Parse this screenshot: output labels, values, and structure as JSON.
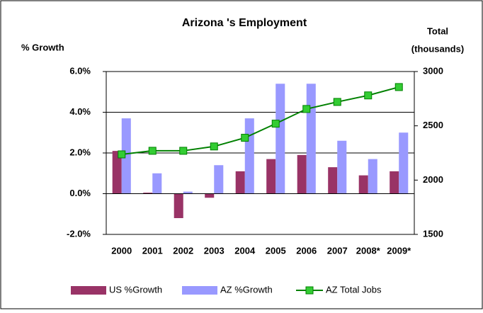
{
  "chart_data": {
    "type": "bar_line",
    "title": "Arizona 's Employment",
    "y_label": "% Growth",
    "y2_label": [
      "Total",
      "(thousands)"
    ],
    "categories": [
      "2000",
      "2001",
      "2002",
      "2003",
      "2004",
      "2005",
      "2006",
      "2007",
      "2008*",
      "2009*"
    ],
    "series": [
      {
        "name": "US %Growth",
        "color": "#993366",
        "type": "bar",
        "values": [
          2.1,
          0.05,
          -1.2,
          -0.2,
          1.1,
          1.7,
          1.9,
          1.3,
          0.9,
          1.1
        ]
      },
      {
        "name": "AZ %Growth",
        "color": "#9999ff",
        "type": "bar",
        "values": [
          3.7,
          1.0,
          0.1,
          1.4,
          3.7,
          5.4,
          5.4,
          2.6,
          1.7,
          3.0
        ]
      },
      {
        "name": "AZ Total Jobs",
        "color": "#008000",
        "marker_color": "#33cc33",
        "type": "line",
        "axis": "y2",
        "values": [
          2237,
          2270,
          2270,
          2310,
          2390,
          2520,
          2655,
          2720,
          2780,
          2857
        ]
      }
    ],
    "ylim": [
      -2,
      6
    ],
    "yticks": [
      {
        "value": -2,
        "label": "-2.0%"
      },
      {
        "value": 0,
        "label": "0.0%"
      },
      {
        "value": 2,
        "label": "2.0%"
      },
      {
        "value": 4,
        "label": "4.0%"
      },
      {
        "value": 6,
        "label": "6.0%"
      }
    ],
    "y2lim": [
      1500,
      3000
    ],
    "y2ticks": [
      1500,
      2000,
      2500,
      3000
    ],
    "grid": true,
    "legend": "bottom"
  }
}
